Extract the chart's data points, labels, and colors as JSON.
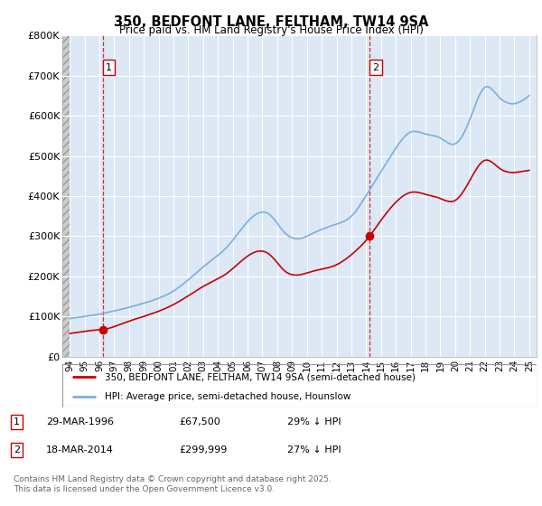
{
  "title": "350, BEDFONT LANE, FELTHAM, TW14 9SA",
  "subtitle": "Price paid vs. HM Land Registry's House Price Index (HPI)",
  "ylim": [
    0,
    800000
  ],
  "xlim": [
    1993.5,
    2025.5
  ],
  "yticks": [
    0,
    100000,
    200000,
    300000,
    400000,
    500000,
    600000,
    700000,
    800000
  ],
  "ytick_labels": [
    "£0",
    "£100K",
    "£200K",
    "£300K",
    "£400K",
    "£500K",
    "£600K",
    "£700K",
    "£800K"
  ],
  "xticks": [
    1994,
    1995,
    1996,
    1997,
    1998,
    1999,
    2000,
    2001,
    2002,
    2003,
    2004,
    2005,
    2006,
    2007,
    2008,
    2009,
    2010,
    2011,
    2012,
    2013,
    2014,
    2015,
    2016,
    2017,
    2018,
    2019,
    2020,
    2021,
    2022,
    2023,
    2024,
    2025
  ],
  "sale1_x": 1996.23,
  "sale1_y": 67500,
  "sale2_x": 2014.21,
  "sale2_y": 299999,
  "red_line_color": "#cc0000",
  "blue_line_color": "#7aafe0",
  "vline_color": "#cc0000",
  "background_plot": "#dce8f5",
  "hatch_bg": "#c8c8c8",
  "grid_color": "#ffffff",
  "legend_label_red": "350, BEDFONT LANE, FELTHAM, TW14 9SA (semi-detached house)",
  "legend_label_blue": "HPI: Average price, semi-detached house, Hounslow",
  "footnote": "Contains HM Land Registry data © Crown copyright and database right 2025.\nThis data is licensed under the Open Government Licence v3.0."
}
